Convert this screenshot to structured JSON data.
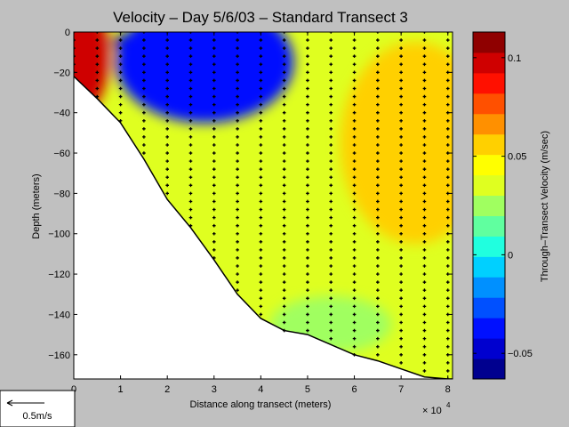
{
  "chart_data": [
    {
      "type": "heatmap",
      "title": "Velocity – Day 5/6/03 – Standard Transect 3",
      "xlabel": "Distance along transect (meters)",
      "ylabel": "Depth (meters)",
      "x_exponent_label": "× 10",
      "x_exponent_power": "4",
      "xlim": [
        0,
        8.1
      ],
      "ylim": [
        -172,
        0
      ],
      "x_ticks": [
        0,
        1,
        2,
        3,
        4,
        5,
        6,
        7,
        8
      ],
      "y_ticks": [
        0,
        -20,
        -40,
        -60,
        -80,
        -100,
        -120,
        -140,
        -160
      ],
      "x_tick_labels": [
        "0",
        "1",
        "2",
        "3",
        "4",
        "5",
        "6",
        "7",
        "8"
      ],
      "y_tick_labels": [
        "0",
        "−20",
        "−40",
        "−60",
        "−80",
        "−100",
        "−120",
        "−140",
        "−160"
      ],
      "bottom_boundary": {
        "x": [
          0,
          0.5,
          1,
          1.5,
          2,
          2.5,
          3,
          3.5,
          4,
          4.5,
          5,
          5.5,
          6,
          6.5,
          7,
          7.5,
          8,
          8.1
        ],
        "depth": [
          -22,
          -33,
          -45,
          -63,
          -83,
          -97,
          -113,
          -130,
          -142,
          -148,
          -150,
          -155,
          -160,
          -163,
          -167,
          -171,
          -172,
          -172
        ]
      },
      "velocity_field_regions": [
        {
          "label": "strong negative surface jet",
          "x_center": 2.2,
          "depth_center": -5,
          "velocity": -0.06
        },
        {
          "label": "negative jet core",
          "x_center": 2.8,
          "depth_center": -15,
          "velocity": -0.04
        },
        {
          "label": "positive nearshore flow",
          "x_center": 0.2,
          "depth_center": -12,
          "velocity": 0.1
        },
        {
          "label": "positive offshore core",
          "x_center": 7.3,
          "depth_center": -55,
          "velocity": 0.06
        },
        {
          "label": "weak positive interior",
          "x_center": 5.0,
          "depth_center": -100,
          "velocity": 0.035
        },
        {
          "label": "weak flow near bottom",
          "x_center": 5.5,
          "depth_center": -145,
          "velocity": 0.02
        }
      ],
      "station_x": [
        0,
        0.5,
        1,
        1.5,
        2,
        2.5,
        3,
        3.5,
        4,
        4.5,
        5,
        5.5,
        6,
        6.5,
        7,
        7.5,
        8
      ],
      "sample_depth_spacing": 4
    },
    {
      "type": "colorbar",
      "label": "Through–Transect Velocity (m/sec)",
      "range": [
        -0.063,
        0.113
      ],
      "ticks": [
        0.1,
        0.05,
        0,
        -0.05
      ],
      "tick_labels": [
        "0.1",
        "0.05",
        "0",
        "−0.05"
      ],
      "colors": [
        "#00008f",
        "#0000cf",
        "#0010ff",
        "#0050ff",
        "#0090ff",
        "#00d0ff",
        "#20ffdf",
        "#60ff9f",
        "#a0ff60",
        "#dfff20",
        "#ffff00",
        "#ffd000",
        "#ff9000",
        "#ff5000",
        "#ff1000",
        "#cf0000",
        "#8f0000"
      ]
    }
  ],
  "scale_legend": {
    "label": "0.5m/s"
  }
}
